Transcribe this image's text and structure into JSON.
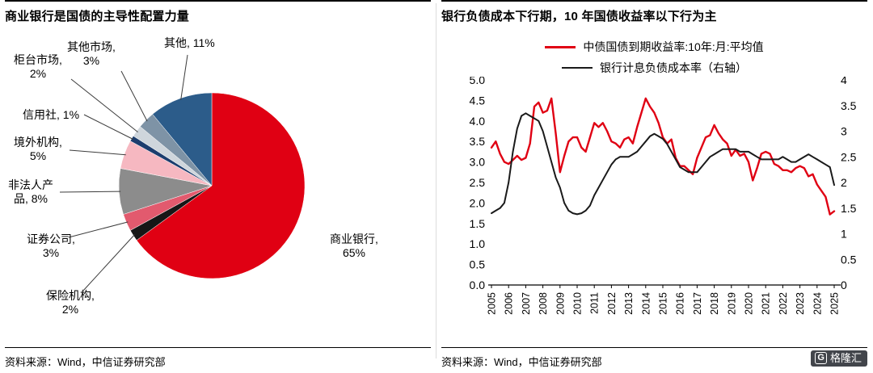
{
  "left": {
    "title": "商业银行是国债的主导性配置力量",
    "source": "资料来源：Wind，中信证券研究部",
    "chart_data": {
      "type": "pie",
      "unit": "%",
      "direction": "clockwise",
      "start_angle_deg": 0,
      "slices": [
        {
          "name": "商业银行",
          "value": 65,
          "label": "商业银行, 65%",
          "color": "#e00013"
        },
        {
          "name": "保险机构",
          "value": 2,
          "label": "保险机构, 2%",
          "color": "#161616"
        },
        {
          "name": "证券公司",
          "value": 3,
          "label": "证券公司, 3%",
          "color": "#e25a6e"
        },
        {
          "name": "非法人产品",
          "value": 8,
          "label": "非法人产品, 8%",
          "color": "#8c8c8c"
        },
        {
          "name": "境外机构",
          "value": 5,
          "label": "境外机构, 5%",
          "color": "#f6b8c1"
        },
        {
          "name": "信用社",
          "value": 1,
          "label": "信用社, 1%",
          "color": "#1c3d6e"
        },
        {
          "name": "柜台市场",
          "value": 2,
          "label": "柜台市场, 2%",
          "color": "#cfd6dc"
        },
        {
          "name": "其他市场",
          "value": 3,
          "label": "其他市场, 3%",
          "color": "#7e93a6"
        },
        {
          "name": "其他",
          "value": 11,
          "label": "其他, 11%",
          "color": "#2c5c8a"
        }
      ]
    }
  },
  "right": {
    "title": "银行负债成本下行期，10 年国债收益率以下行为主",
    "source": "资料来源：Wind，中信证券研究部",
    "legend": [
      "中债国债到期收益率:10年:月:平均值",
      "银行计息负债成本率（右轴）"
    ],
    "chart_data": {
      "type": "line",
      "x_start": 2005,
      "x_end": 2025,
      "x_step": 0.25,
      "grid": false,
      "left_axis": {
        "min": 0,
        "max": 5,
        "ticks": [
          "5.0",
          "4.5",
          "4.0",
          "3.5",
          "3.0",
          "2.5",
          "2.0",
          "1.5",
          "1.0",
          "0.5",
          "0.0"
        ]
      },
      "right_axis": {
        "min": 0,
        "max": 4,
        "ticks": [
          "4",
          "3.5",
          "3",
          "2.5",
          "2",
          "1.5",
          "1",
          "0.5",
          "0"
        ]
      },
      "x_ticks": [
        "2005",
        "2006",
        "2007",
        "2008",
        "2009",
        "2010",
        "2011",
        "2012",
        "2013",
        "2014",
        "2015",
        "2016",
        "2017",
        "2018",
        "2019",
        "2020",
        "2021",
        "2022",
        "2023",
        "2024",
        "2025"
      ],
      "series": [
        {
          "name": "中债国债到期收益率:10年:月:平均值",
          "axis": "left",
          "color": "#e00013",
          "width": 2.4,
          "values": [
            3.35,
            3.5,
            3.2,
            3.0,
            2.95,
            3.05,
            3.15,
            3.05,
            3.1,
            3.45,
            4.35,
            4.45,
            4.2,
            4.25,
            4.55,
            3.7,
            2.75,
            3.15,
            3.5,
            3.6,
            3.6,
            3.35,
            3.25,
            3.6,
            3.95,
            3.85,
            3.95,
            3.75,
            3.5,
            3.45,
            3.35,
            3.55,
            3.6,
            3.45,
            3.85,
            4.2,
            4.55,
            4.35,
            4.2,
            3.95,
            3.6,
            3.45,
            3.55,
            3.1,
            2.9,
            2.9,
            2.8,
            2.7,
            3.1,
            3.35,
            3.6,
            3.65,
            3.9,
            3.7,
            3.55,
            3.45,
            3.15,
            3.3,
            3.15,
            3.2,
            3.0,
            2.55,
            2.85,
            3.2,
            3.25,
            3.2,
            2.95,
            2.9,
            2.8,
            2.8,
            2.75,
            2.85,
            2.9,
            2.85,
            2.65,
            2.7,
            2.45,
            2.3,
            2.15,
            1.72,
            1.8
          ]
        },
        {
          "name": "银行计息负债成本率（右轴）",
          "axis": "right",
          "color": "#1a1a1a",
          "width": 2,
          "values": [
            1.4,
            1.45,
            1.5,
            1.6,
            2.0,
            2.6,
            3.05,
            3.3,
            3.35,
            3.3,
            3.25,
            3.2,
            3.0,
            2.7,
            2.4,
            2.1,
            1.9,
            1.6,
            1.45,
            1.4,
            1.38,
            1.4,
            1.45,
            1.55,
            1.75,
            1.9,
            2.05,
            2.2,
            2.35,
            2.45,
            2.5,
            2.5,
            2.5,
            2.55,
            2.6,
            2.7,
            2.8,
            2.9,
            2.95,
            2.9,
            2.85,
            2.75,
            2.6,
            2.45,
            2.3,
            2.25,
            2.2,
            2.2,
            2.2,
            2.3,
            2.4,
            2.5,
            2.55,
            2.6,
            2.65,
            2.65,
            2.65,
            2.65,
            2.6,
            2.6,
            2.6,
            2.55,
            2.5,
            2.45,
            2.45,
            2.45,
            2.45,
            2.45,
            2.5,
            2.45,
            2.4,
            2.4,
            2.45,
            2.5,
            2.55,
            2.5,
            2.45,
            2.4,
            2.35,
            2.3,
            1.95
          ]
        }
      ]
    }
  },
  "footer_logo": {
    "icon": "G",
    "text": "格隆汇"
  }
}
